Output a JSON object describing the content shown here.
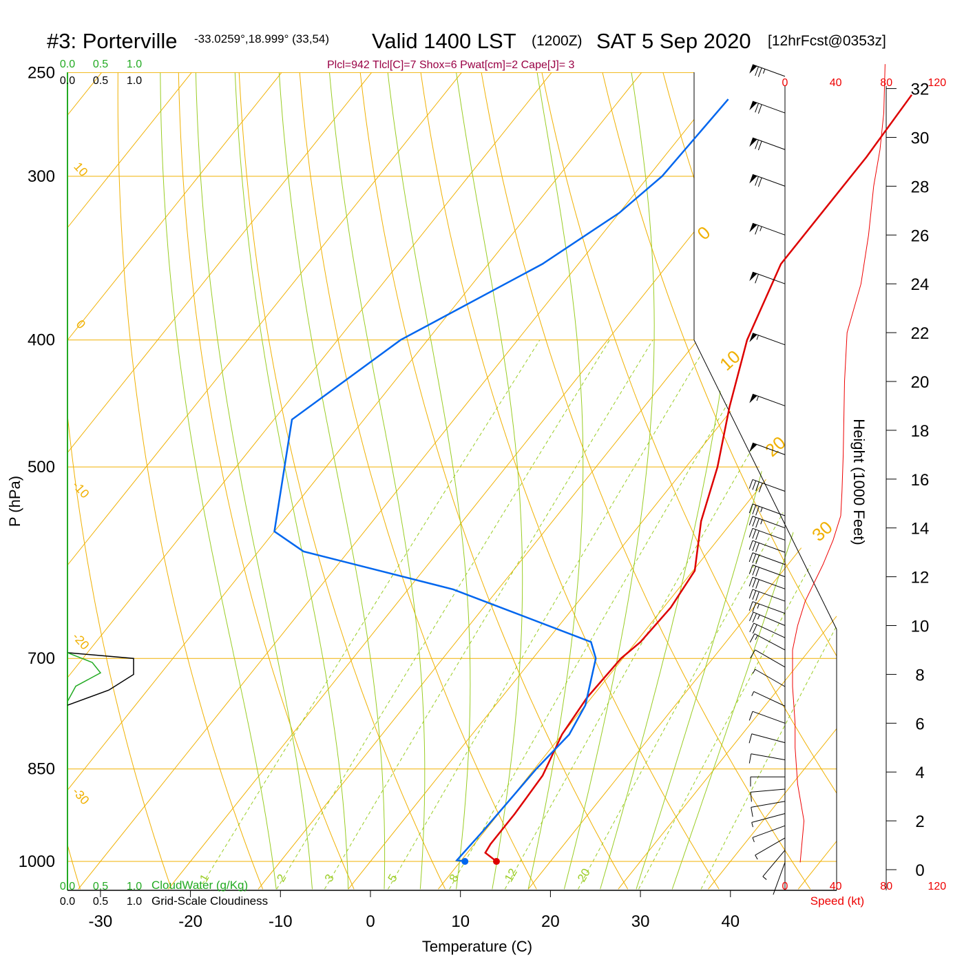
{
  "header": {
    "station": "#3: Porterville",
    "coords": "-33.0259°,18.999° (33,54)",
    "valid": "Valid 1400 LST",
    "zulu": "(1200Z)",
    "date": "SAT 5 Sep 2020",
    "forecast": "[12hrFcst@0353z]",
    "indices": "Plcl=942 Tlcl[C]=7 Shox=6 Pwat[cm]=2 Cape[J]= 3"
  },
  "colors": {
    "temperature": "#dd0000",
    "dewpoint": "#0066ee",
    "isotherm_grid": "#f0b000",
    "moist_adiabat": "#99cc22",
    "mixing_ratio": "#99cc22",
    "cloudwater": "#22aa22",
    "cloudiness": "#000000",
    "speed": "#ee0000",
    "indices": "#990044"
  },
  "chart_data": {
    "type": "line",
    "title": "#3: Porterville  Valid 1400 LST (1200Z) SAT 5 Sep 2020",
    "xlabel": "Temperature (C)",
    "ylabel": "P (hPa)",
    "y2label": "Height (1000 Feet)",
    "pressure_ticks": [
      250,
      300,
      400,
      500,
      700,
      850,
      1000
    ],
    "pressure_tick_labels": [
      "250",
      "300",
      "400",
      "500",
      "700",
      "850",
      "1000"
    ],
    "temperature_ticks": [
      -30,
      -20,
      -10,
      0,
      10,
      20,
      30,
      40
    ],
    "temperature_tick_labels": [
      "-30",
      "-20",
      "-10",
      "0",
      "10",
      "20",
      "30",
      "40"
    ],
    "height_ticks": [
      0,
      2,
      4,
      6,
      8,
      10,
      12,
      14,
      16,
      18,
      20,
      22,
      24,
      26,
      28,
      30,
      32
    ],
    "height_tick_labels": [
      "0",
      "2",
      "4",
      "6",
      "8",
      "10",
      "12",
      "14",
      "16",
      "18",
      "20",
      "22",
      "24",
      "26",
      "28",
      "30",
      "32"
    ],
    "skew_labels": [
      "10",
      "0",
      "-10",
      "-20",
      "-30",
      "0",
      "10",
      "20",
      "30"
    ],
    "mixing_ratio_labels": [
      "1",
      "2",
      "3",
      "5",
      "8",
      "12",
      "20"
    ],
    "series": [
      {
        "name": "Temperature",
        "points": [
          [
            1000,
            14.0
          ],
          [
            985,
            12.0
          ],
          [
            970,
            11.8
          ],
          [
            920,
            11.8
          ],
          [
            860,
            11.5
          ],
          [
            800,
            10.0
          ],
          [
            750,
            9.5
          ],
          [
            700,
            9.8
          ],
          [
            680,
            10.5
          ],
          [
            640,
            10.8
          ],
          [
            600,
            10.2
          ],
          [
            550,
            6.5
          ],
          [
            500,
            3.5
          ],
          [
            450,
            -0.5
          ],
          [
            400,
            -4.5
          ],
          [
            350,
            -7.5
          ],
          [
            320,
            -7.5
          ],
          [
            290,
            -7.5
          ],
          [
            260,
            -8.0
          ]
        ]
      },
      {
        "name": "Dewpoint",
        "points": [
          [
            1000,
            10.5
          ],
          [
            998,
            9.5
          ],
          [
            950,
            9.8
          ],
          [
            900,
            10.0
          ],
          [
            850,
            10.2
          ],
          [
            800,
            10.8
          ],
          [
            760,
            10.0
          ],
          [
            700,
            7.0
          ],
          [
            680,
            5.0
          ],
          [
            620,
            -15.0
          ],
          [
            580,
            -35.0
          ],
          [
            560,
            -40.0
          ],
          [
            460,
            -48.0
          ],
          [
            400,
            -43.0
          ],
          [
            350,
            -34.0
          ],
          [
            320,
            -30.0
          ],
          [
            300,
            -28.5
          ],
          [
            262,
            -28.0
          ]
        ]
      },
      {
        "name": "Speed (kt)",
        "points": [
          [
            0.3,
            12
          ],
          [
            2,
            15
          ],
          [
            3.5,
            10
          ],
          [
            5,
            8
          ],
          [
            6,
            8
          ],
          [
            7.5,
            6
          ],
          [
            9,
            6
          ],
          [
            10,
            10
          ],
          [
            11,
            16
          ],
          [
            12.5,
            30
          ],
          [
            13.5,
            38
          ],
          [
            14.5,
            44
          ],
          [
            15.5,
            45
          ],
          [
            17,
            46
          ],
          [
            20,
            47
          ],
          [
            22,
            49
          ],
          [
            24,
            60
          ],
          [
            26,
            66
          ],
          [
            28,
            70
          ],
          [
            29.5,
            75
          ],
          [
            31,
            78
          ],
          [
            33,
            79
          ]
        ]
      }
    ],
    "cloud_profiles": {
      "x_ticks": [
        "0.0",
        "0.5",
        "1.0"
      ],
      "cloudwater_label": "CloudWater (g/Kg)",
      "cloudiness_label": "Grid-Scale Cloudiness"
    },
    "speed_axis": {
      "label": "Speed (kt)",
      "ticks": [
        "0",
        "40",
        "80",
        "120"
      ]
    },
    "wind_levels_ft": [
      0.3,
      0.8,
      1.3,
      1.8,
      2.3,
      2.8,
      3.3,
      3.8,
      4.5,
      5.2,
      6.0,
      6.7,
      7.5,
      8.3,
      9.0,
      9.5,
      10.0,
      10.5,
      11.0,
      11.5,
      12.0,
      12.5,
      13.0,
      13.5,
      14.0,
      14.5,
      15.5,
      17.0,
      19.0,
      21.5,
      24.0,
      26.0,
      28.0,
      29.5,
      31.0,
      32.5
    ],
    "wind_speeds_kt": [
      3,
      5,
      7,
      8,
      9,
      10,
      11,
      12,
      12,
      12,
      11,
      9,
      9,
      12,
      18,
      22,
      26,
      28,
      30,
      32,
      32,
      33,
      33,
      34,
      35,
      36,
      40,
      50,
      55,
      58,
      62,
      66,
      70,
      72,
      74,
      75
    ],
    "wind_dirs_deg": [
      200,
      220,
      240,
      250,
      255,
      260,
      265,
      270,
      280,
      285,
      290,
      295,
      300,
      300,
      298,
      295,
      293,
      290,
      290,
      290,
      290,
      290,
      290,
      290,
      290,
      290,
      290,
      290,
      290,
      290,
      290,
      290,
      290,
      290,
      290,
      290
    ],
    "ylim": [
      250,
      1050
    ],
    "xlim": [
      -33,
      36
    ]
  }
}
